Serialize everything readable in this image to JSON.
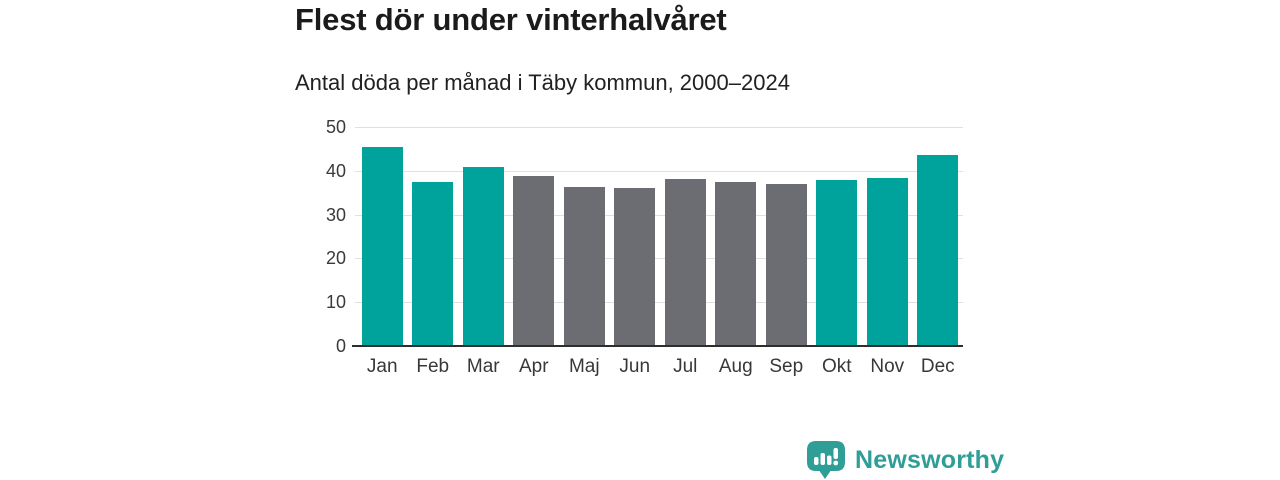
{
  "header": {
    "title": "Flest dör under vinterhalvåret",
    "subtitle": "Antal döda per månad i Täby kommun, 2000–2024"
  },
  "chart_data": {
    "type": "bar",
    "title": "Flest dör under vinterhalvåret",
    "subtitle": "Antal döda per månad i Täby kommun, 2000–2024",
    "categories": [
      "Jan",
      "Feb",
      "Mar",
      "Apr",
      "Maj",
      "Jun",
      "Jul",
      "Aug",
      "Sep",
      "Okt",
      "Nov",
      "Dec"
    ],
    "values": [
      45.4,
      37.4,
      40.9,
      38.9,
      36.4,
      36.1,
      38.2,
      37.5,
      36.9,
      37.8,
      38.3,
      43.5
    ],
    "bar_groups": [
      "winter",
      "winter",
      "winter",
      "summer",
      "summer",
      "summer",
      "summer",
      "summer",
      "summer",
      "winter",
      "winter",
      "winter"
    ],
    "group_colors": {
      "winter": "#00A39B",
      "summer": "#6C6C73"
    },
    "xlabel": "",
    "ylabel": "",
    "ylim": [
      0,
      50
    ],
    "yticks": [
      0,
      10,
      20,
      30,
      40,
      50
    ],
    "grid": "horizontal-only",
    "legend": "none",
    "axis_line_color": "#2e2e2e",
    "gridline_color": "#e0e0e0"
  },
  "footer": {
    "brand": "Newsworthy",
    "brand_color": "#2E9E97",
    "logo_icon": "newsworthy-speech-bubble-barchart-icon"
  }
}
